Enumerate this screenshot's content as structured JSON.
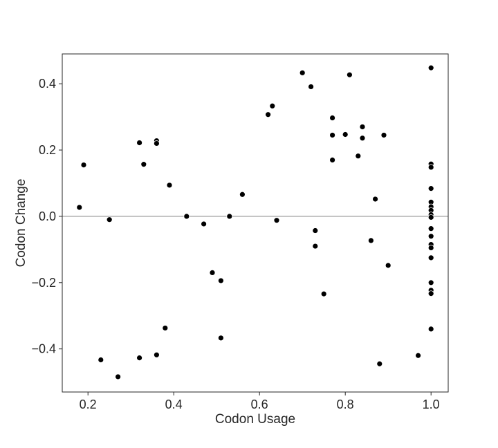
{
  "chart_data": {
    "type": "scatter",
    "title": "",
    "xlabel": "Codon Usage",
    "ylabel": "Codon Change",
    "xlim": [
      0.14,
      1.04
    ],
    "ylim": [
      -0.53,
      0.49
    ],
    "xticks": [
      "0.2",
      "0.4",
      "0.6",
      "0.8",
      "1.0"
    ],
    "yticks": [
      "−0.4",
      "−0.2",
      "0.0",
      "0.2",
      "0.4"
    ],
    "xtick_values": [
      0.2,
      0.4,
      0.6,
      0.8,
      1.0
    ],
    "ytick_values": [
      -0.4,
      -0.2,
      0.0,
      0.2,
      0.4
    ],
    "reference_line_y": 0.0,
    "grid": false,
    "marker_color": "#000000",
    "line_color": "#808080",
    "points": [
      {
        "x": 0.18,
        "y": 0.027
      },
      {
        "x": 0.19,
        "y": 0.155
      },
      {
        "x": 0.23,
        "y": -0.433
      },
      {
        "x": 0.25,
        "y": -0.01
      },
      {
        "x": 0.27,
        "y": -0.484
      },
      {
        "x": 0.32,
        "y": 0.222
      },
      {
        "x": 0.32,
        "y": -0.427
      },
      {
        "x": 0.33,
        "y": 0.157
      },
      {
        "x": 0.36,
        "y": 0.228
      },
      {
        "x": 0.36,
        "y": 0.22
      },
      {
        "x": 0.36,
        "y": -0.418
      },
      {
        "x": 0.38,
        "y": -0.337
      },
      {
        "x": 0.39,
        "y": 0.094
      },
      {
        "x": 0.43,
        "y": 0.0
      },
      {
        "x": 0.47,
        "y": -0.023
      },
      {
        "x": 0.49,
        "y": -0.17
      },
      {
        "x": 0.51,
        "y": -0.194
      },
      {
        "x": 0.51,
        "y": -0.367
      },
      {
        "x": 0.53,
        "y": 0.0
      },
      {
        "x": 0.56,
        "y": 0.066
      },
      {
        "x": 0.62,
        "y": 0.307
      },
      {
        "x": 0.63,
        "y": 0.333
      },
      {
        "x": 0.64,
        "y": -0.012
      },
      {
        "x": 0.7,
        "y": 0.433
      },
      {
        "x": 0.72,
        "y": 0.391
      },
      {
        "x": 0.73,
        "y": -0.043
      },
      {
        "x": 0.73,
        "y": -0.09
      },
      {
        "x": 0.75,
        "y": -0.234
      },
      {
        "x": 0.77,
        "y": 0.297
      },
      {
        "x": 0.77,
        "y": 0.245
      },
      {
        "x": 0.77,
        "y": 0.17
      },
      {
        "x": 0.8,
        "y": 0.247
      },
      {
        "x": 0.81,
        "y": 0.427
      },
      {
        "x": 0.83,
        "y": 0.182
      },
      {
        "x": 0.84,
        "y": 0.27
      },
      {
        "x": 0.84,
        "y": 0.236
      },
      {
        "x": 0.86,
        "y": -0.073
      },
      {
        "x": 0.87,
        "y": 0.052
      },
      {
        "x": 0.88,
        "y": -0.445
      },
      {
        "x": 0.89,
        "y": 0.245
      },
      {
        "x": 0.9,
        "y": -0.148
      },
      {
        "x": 0.97,
        "y": -0.42
      },
      {
        "x": 1.0,
        "y": 0.448
      },
      {
        "x": 1.0,
        "y": 0.158
      },
      {
        "x": 1.0,
        "y": 0.148
      },
      {
        "x": 1.0,
        "y": 0.084
      },
      {
        "x": 1.0,
        "y": 0.043
      },
      {
        "x": 1.0,
        "y": 0.029
      },
      {
        "x": 1.0,
        "y": 0.018
      },
      {
        "x": 1.0,
        "y": 0.005
      },
      {
        "x": 1.0,
        "y": -0.003
      },
      {
        "x": 1.0,
        "y": -0.037
      },
      {
        "x": 1.0,
        "y": -0.06
      },
      {
        "x": 1.0,
        "y": -0.085
      },
      {
        "x": 1.0,
        "y": -0.095
      },
      {
        "x": 1.0,
        "y": -0.125
      },
      {
        "x": 1.0,
        "y": -0.2
      },
      {
        "x": 1.0,
        "y": -0.223
      },
      {
        "x": 1.0,
        "y": -0.233
      },
      {
        "x": 1.0,
        "y": -0.34
      }
    ]
  }
}
